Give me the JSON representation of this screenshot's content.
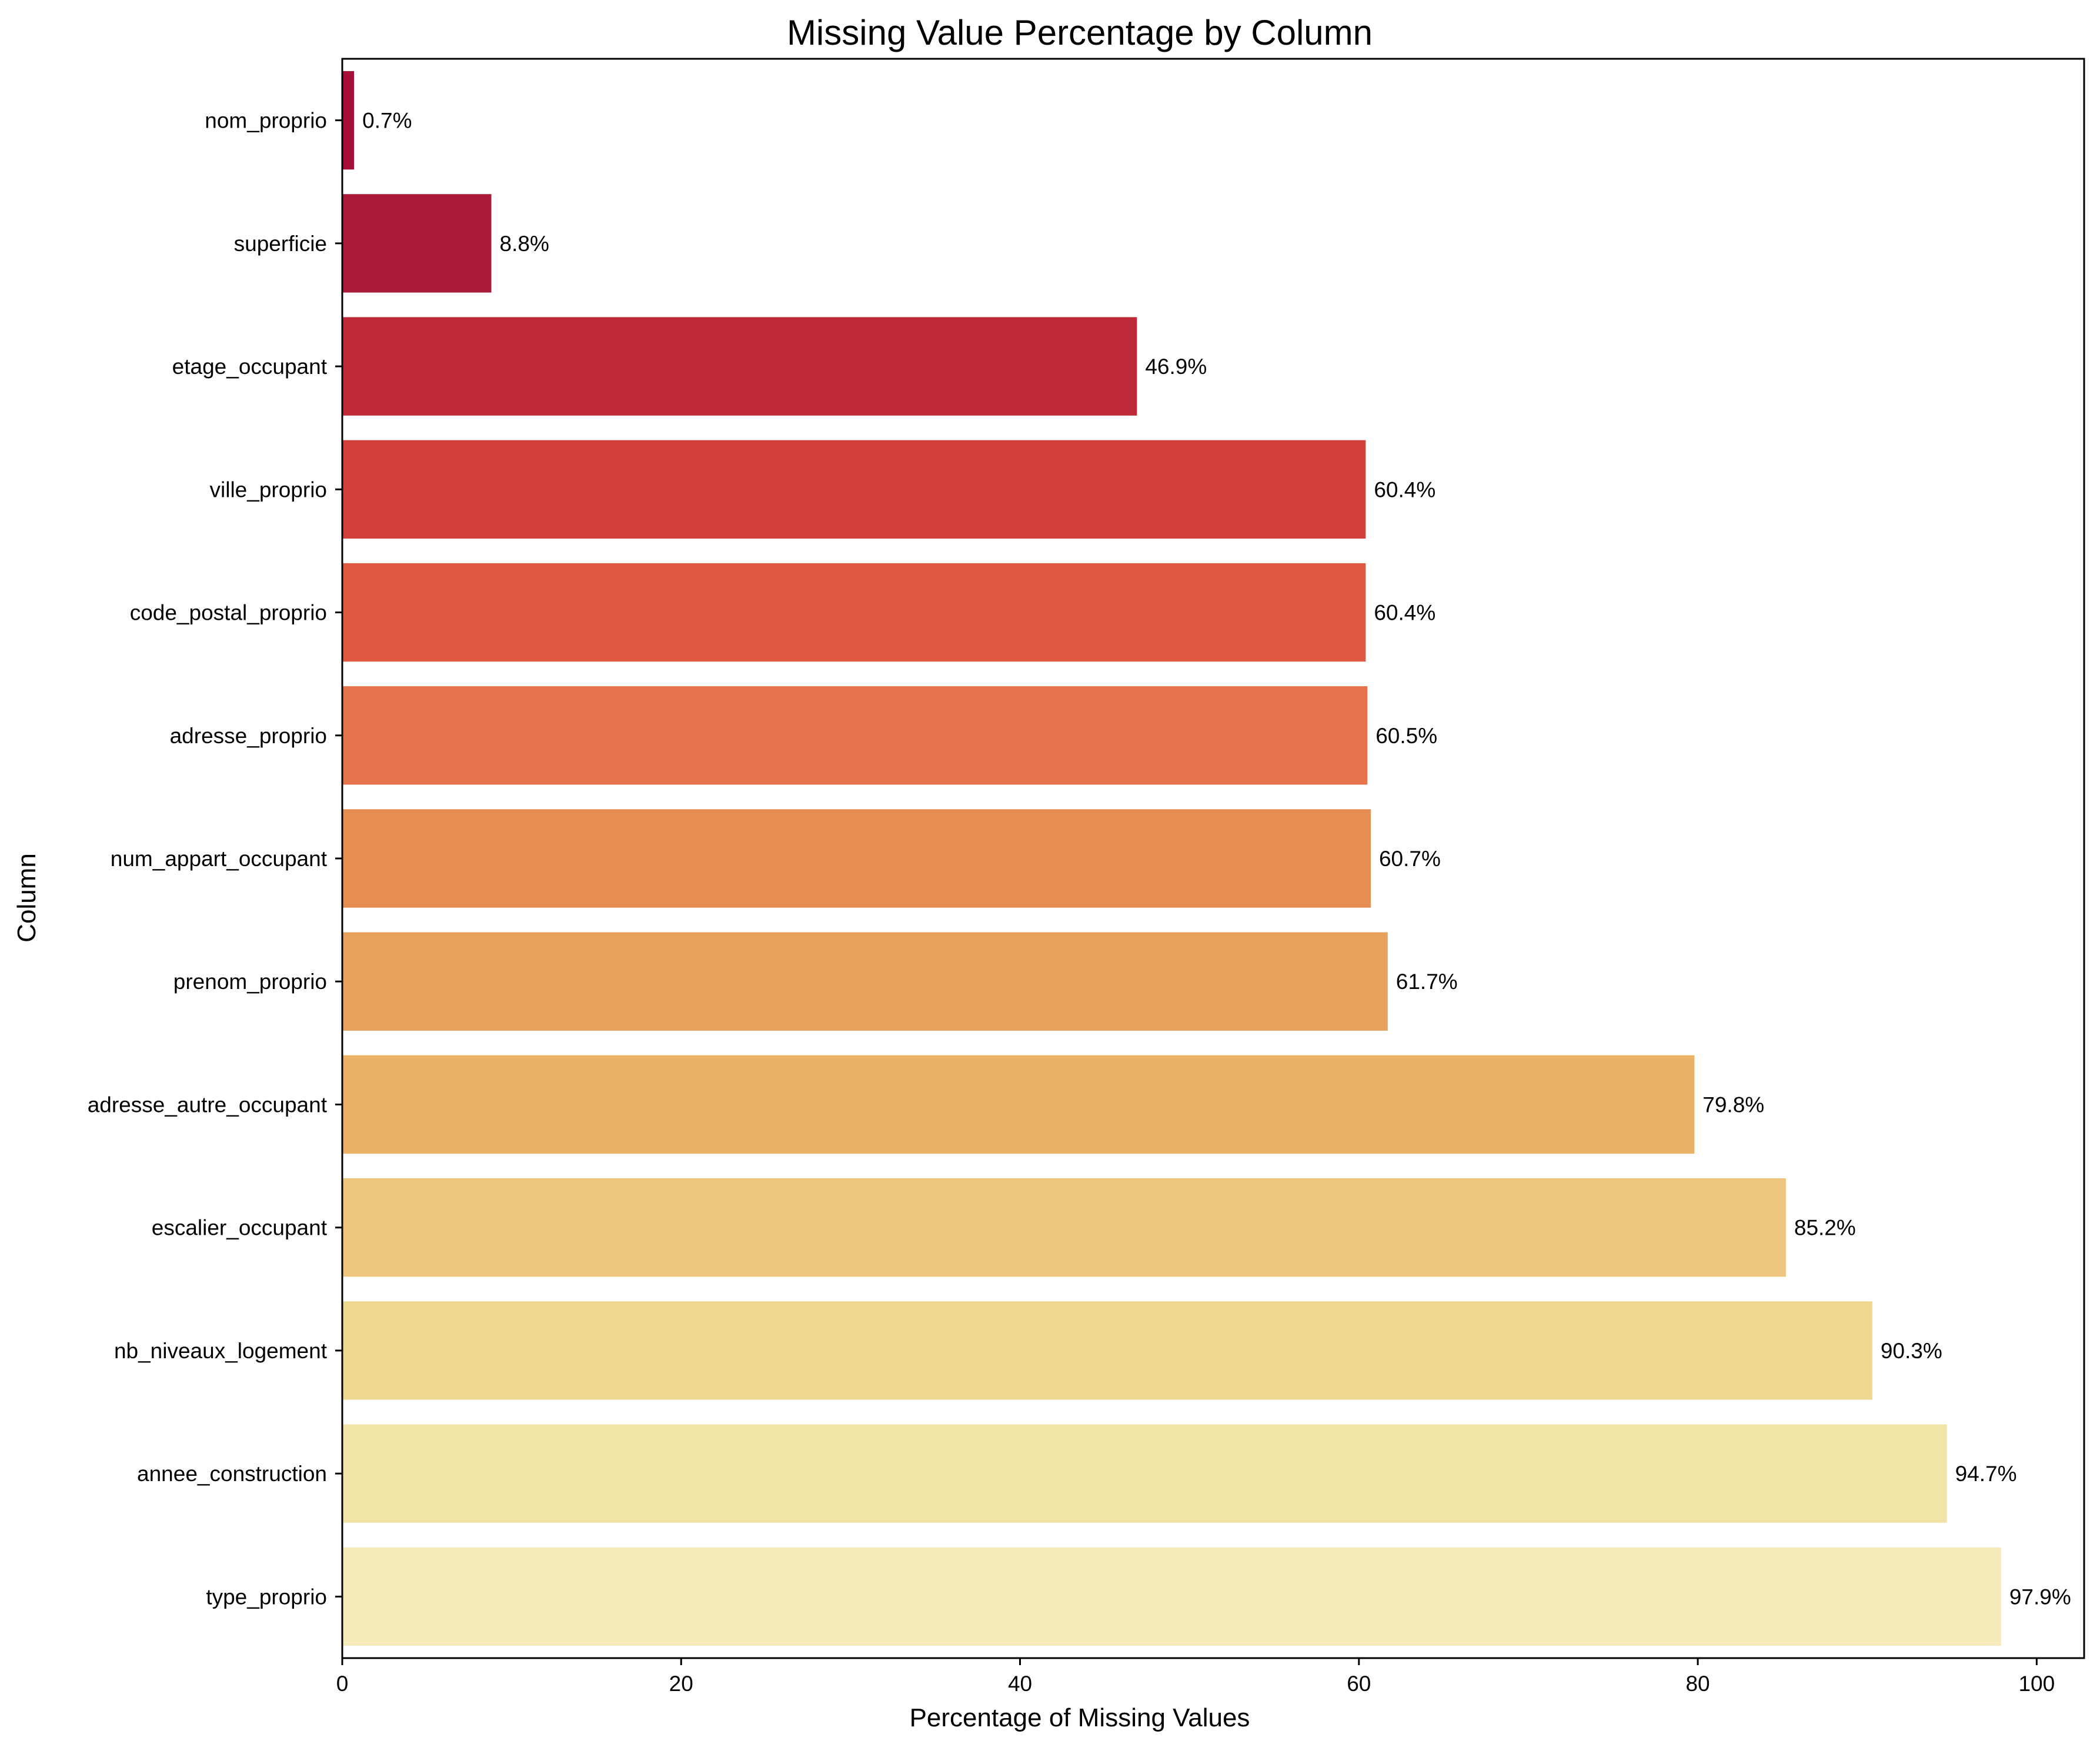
{
  "chart_data": {
    "type": "bar",
    "orientation": "horizontal",
    "title": "Missing Value Percentage by Column",
    "xlabel": "Percentage of Missing Values",
    "ylabel": "Column",
    "xlim": [
      0,
      102.8
    ],
    "xticks": [
      0,
      20,
      40,
      60,
      80,
      100
    ],
    "grid": false,
    "legend": "none",
    "value_label_suffix": "%",
    "categories": [
      "nom_proprio",
      "superficie",
      "etage_occupant",
      "ville_proprio",
      "code_postal_proprio",
      "adresse_proprio",
      "num_appart_occupant",
      "prenom_proprio",
      "adresse_autre_occupant",
      "escalier_occupant",
      "nb_niveaux_logement",
      "annee_construction",
      "type_proprio"
    ],
    "values": [
      0.7,
      8.8,
      46.9,
      60.4,
      60.4,
      60.5,
      60.7,
      61.7,
      79.8,
      85.2,
      90.3,
      94.7,
      97.9
    ],
    "colors": [
      "#a50f38",
      "#ab1b37",
      "#be2b37",
      "#d14139",
      "#df5942",
      "#e5734c",
      "#e68e52",
      "#e8a15a",
      "#e9b267",
      "#ecc77d",
      "#efd890",
      "#f2e3a7",
      "#f6ecbb"
    ]
  }
}
